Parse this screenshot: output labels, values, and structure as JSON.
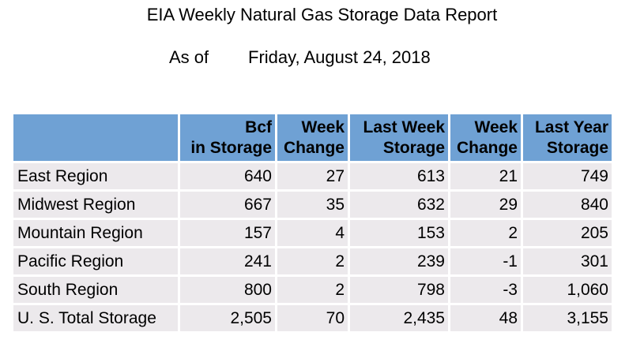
{
  "report": {
    "title": "EIA Weekly Natural Gas Storage Data Report",
    "as_of_label": "As of",
    "as_of_date": "Friday, August 24, 2018"
  },
  "table": {
    "headers": [
      {
        "line1": "",
        "line2": ""
      },
      {
        "line1": "Bcf",
        "line2": "in Storage"
      },
      {
        "line1": "Week",
        "line2": "Change"
      },
      {
        "line1": "Last Week",
        "line2": "Storage"
      },
      {
        "line1": "Week",
        "line2": "Change"
      },
      {
        "line1": "Last Year",
        "line2": "Storage"
      }
    ],
    "rows": [
      {
        "region": "East Region",
        "bcf": "640",
        "week_change": "27",
        "last_week_storage": "613",
        "last_week_change": "21",
        "last_year_storage": "749"
      },
      {
        "region": "Midwest Region",
        "bcf": "667",
        "week_change": "35",
        "last_week_storage": "632",
        "last_week_change": "29",
        "last_year_storage": "840"
      },
      {
        "region": "Mountain Region",
        "bcf": "157",
        "week_change": "4",
        "last_week_storage": "153",
        "last_week_change": "2",
        "last_year_storage": "205"
      },
      {
        "region": "Pacific Region",
        "bcf": "241",
        "week_change": "2",
        "last_week_storage": "239",
        "last_week_change": "-1",
        "last_year_storage": "301"
      },
      {
        "region": "South Region",
        "bcf": "800",
        "week_change": "2",
        "last_week_storage": "798",
        "last_week_change": "-3",
        "last_year_storage": "1,060"
      },
      {
        "region": "U. S. Total Storage",
        "bcf": "2,505",
        "week_change": "70",
        "last_week_storage": "2,435",
        "last_week_change": "48",
        "last_year_storage": "3,155"
      }
    ]
  },
  "colors": {
    "header_fill": "#6fa1d4",
    "cell_fill": "#ece9ec"
  }
}
